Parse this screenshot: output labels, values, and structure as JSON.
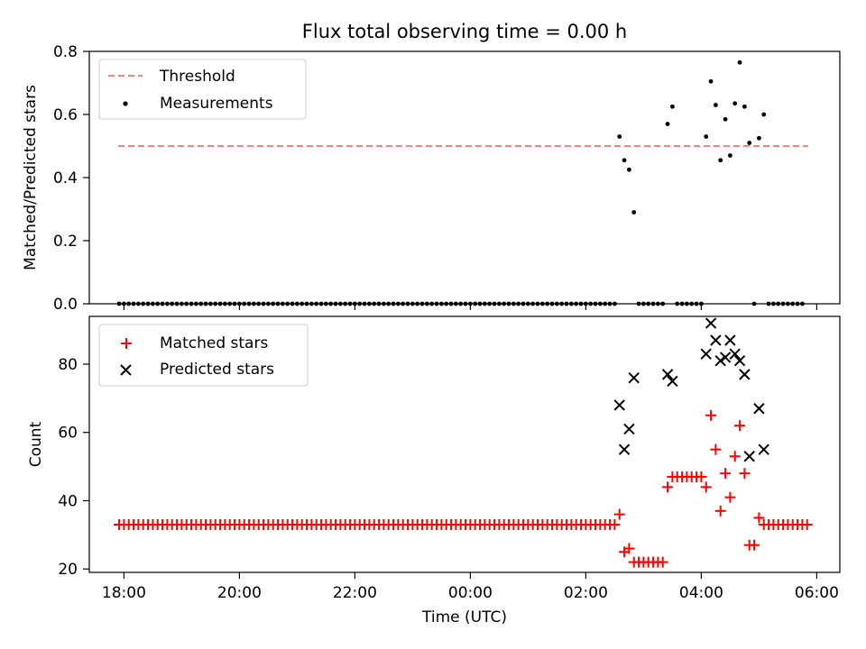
{
  "chart_data": [
    {
      "type": "scatter",
      "title": "Flux total observing time = 0.00 h",
      "xlabel": "",
      "ylabel": "Matched/Predicted stars",
      "ylim": [
        0,
        0.8
      ],
      "yticks": [
        0.0,
        0.2,
        0.4,
        0.6,
        0.8
      ],
      "ytick_labels": [
        "0.0",
        "0.2",
        "0.4",
        "0.6",
        "0.8"
      ],
      "legend_position": "top-left",
      "threshold": {
        "name": "Threshold",
        "value": 0.5,
        "x_start": 17.9,
        "x_end": 29.85,
        "color": "#ff7f7f"
      },
      "series": [
        {
          "name": "Measurements",
          "color": "#000000",
          "marker": "dot",
          "note": "zero-ratio points 17:55 to 02:30 every 5 min, plus listed points",
          "zero_run": {
            "start": 17.9167,
            "end": 26.5,
            "step": 0.08333
          },
          "points": [
            [
              26.583,
              0.53
            ],
            [
              26.667,
              0.455
            ],
            [
              26.75,
              0.425
            ],
            [
              26.833,
              0.29
            ],
            [
              26.917,
              0
            ],
            [
              27.0,
              0
            ],
            [
              27.083,
              0
            ],
            [
              27.167,
              0
            ],
            [
              27.25,
              0
            ],
            [
              27.333,
              0
            ],
            [
              27.417,
              0.57
            ],
            [
              27.5,
              0.625
            ],
            [
              27.583,
              0
            ],
            [
              27.667,
              0
            ],
            [
              27.75,
              0
            ],
            [
              27.833,
              0
            ],
            [
              27.917,
              0
            ],
            [
              28.0,
              0
            ],
            [
              28.083,
              0.53
            ],
            [
              28.167,
              0.705
            ],
            [
              28.25,
              0.63
            ],
            [
              28.333,
              0.455
            ],
            [
              28.417,
              0.585
            ],
            [
              28.5,
              0.47
            ],
            [
              28.583,
              0.635
            ],
            [
              28.667,
              0.765
            ],
            [
              28.75,
              0.625
            ],
            [
              28.833,
              0.51
            ],
            [
              28.917,
              0
            ],
            [
              29.0,
              0.525
            ],
            [
              29.083,
              0.6
            ],
            [
              29.167,
              0
            ],
            [
              29.25,
              0
            ],
            [
              29.333,
              0
            ],
            [
              29.417,
              0
            ],
            [
              29.5,
              0
            ],
            [
              29.583,
              0
            ],
            [
              29.667,
              0
            ],
            [
              29.75,
              0
            ]
          ]
        }
      ]
    },
    {
      "type": "scatter",
      "title": "",
      "xlabel": "Time (UTC)",
      "ylabel": "Count",
      "xlim": [
        17.4,
        30.4
      ],
      "ylim": [
        19,
        94
      ],
      "yticks": [
        20,
        40,
        60,
        80
      ],
      "ytick_labels": [
        "20",
        "40",
        "60",
        "80"
      ],
      "xticks": [
        18,
        20,
        22,
        24,
        26,
        28,
        30
      ],
      "xtick_labels": [
        "18:00",
        "20:00",
        "22:00",
        "00:00",
        "02:00",
        "04:00",
        "06:00"
      ],
      "legend_position": "top-left",
      "series": [
        {
          "name": "Matched stars",
          "color": "#ff0000",
          "marker": "plus",
          "note": "value 33 from 17:55 to 02:30 every 5 min, plus listed points",
          "const_run": {
            "start": 17.9167,
            "end": 26.5,
            "step": 0.08333,
            "value": 33
          },
          "points": [
            [
              26.583,
              36
            ],
            [
              26.667,
              25
            ],
            [
              26.75,
              26
            ],
            [
              26.833,
              22
            ],
            [
              26.917,
              22
            ],
            [
              27.0,
              22
            ],
            [
              27.083,
              22
            ],
            [
              27.167,
              22
            ],
            [
              27.25,
              22
            ],
            [
              27.333,
              22
            ],
            [
              27.417,
              44
            ],
            [
              27.5,
              47
            ],
            [
              27.583,
              47
            ],
            [
              27.667,
              47
            ],
            [
              27.75,
              47
            ],
            [
              27.833,
              47
            ],
            [
              27.917,
              47
            ],
            [
              28.0,
              47
            ],
            [
              28.083,
              44
            ],
            [
              28.167,
              65
            ],
            [
              28.25,
              55
            ],
            [
              28.333,
              37
            ],
            [
              28.417,
              48
            ],
            [
              28.5,
              41
            ],
            [
              28.583,
              53
            ],
            [
              28.667,
              62
            ],
            [
              28.75,
              48
            ],
            [
              28.833,
              27
            ],
            [
              28.917,
              27
            ],
            [
              29.0,
              35
            ],
            [
              29.083,
              33
            ],
            [
              29.167,
              33
            ],
            [
              29.25,
              33
            ],
            [
              29.333,
              33
            ],
            [
              29.417,
              33
            ],
            [
              29.5,
              33
            ],
            [
              29.583,
              33
            ],
            [
              29.667,
              33
            ],
            [
              29.75,
              33
            ],
            [
              29.833,
              33
            ]
          ]
        },
        {
          "name": "Predicted stars",
          "color": "#000000",
          "marker": "x",
          "points": [
            [
              26.583,
              68
            ],
            [
              26.667,
              55
            ],
            [
              26.75,
              61
            ],
            [
              26.833,
              76
            ],
            [
              27.417,
              77
            ],
            [
              27.5,
              75
            ],
            [
              28.083,
              83
            ],
            [
              28.167,
              92
            ],
            [
              28.25,
              87
            ],
            [
              28.333,
              81
            ],
            [
              28.417,
              82
            ],
            [
              28.5,
              87
            ],
            [
              28.583,
              83
            ],
            [
              28.667,
              81
            ],
            [
              28.75,
              77
            ],
            [
              28.833,
              53
            ],
            [
              29.0,
              67
            ],
            [
              29.083,
              55
            ]
          ]
        }
      ]
    }
  ]
}
